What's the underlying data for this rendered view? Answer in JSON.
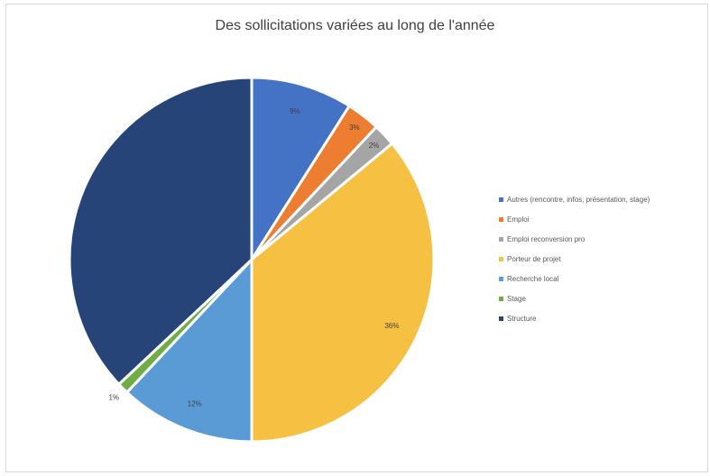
{
  "chart_data": {
    "type": "pie",
    "title": "Des sollicitations variées au long de l'année",
    "legend_position": "right",
    "slices": [
      {
        "name": "Autres (rencontre, infos, présentation, stage)",
        "value": 9,
        "label": "9%",
        "color": "#4472c4"
      },
      {
        "name": "Emploi",
        "value": 3,
        "label": "3%",
        "color": "#ed7d31"
      },
      {
        "name": "Emploi reconversion pro",
        "value": 2,
        "label": "2%",
        "color": "#a5a5a5"
      },
      {
        "name": "Porteur de projet",
        "value": 36,
        "label": "36%",
        "color": "#f6c142"
      },
      {
        "name": "Recherche local",
        "value": 12,
        "label": "12%",
        "color": "#5b9bd5"
      },
      {
        "name": "Stage",
        "value": 1,
        "label": "1%",
        "color": "#70ad47"
      },
      {
        "name": "Structure",
        "value": 37,
        "label": "",
        "color": "#264478"
      }
    ]
  }
}
